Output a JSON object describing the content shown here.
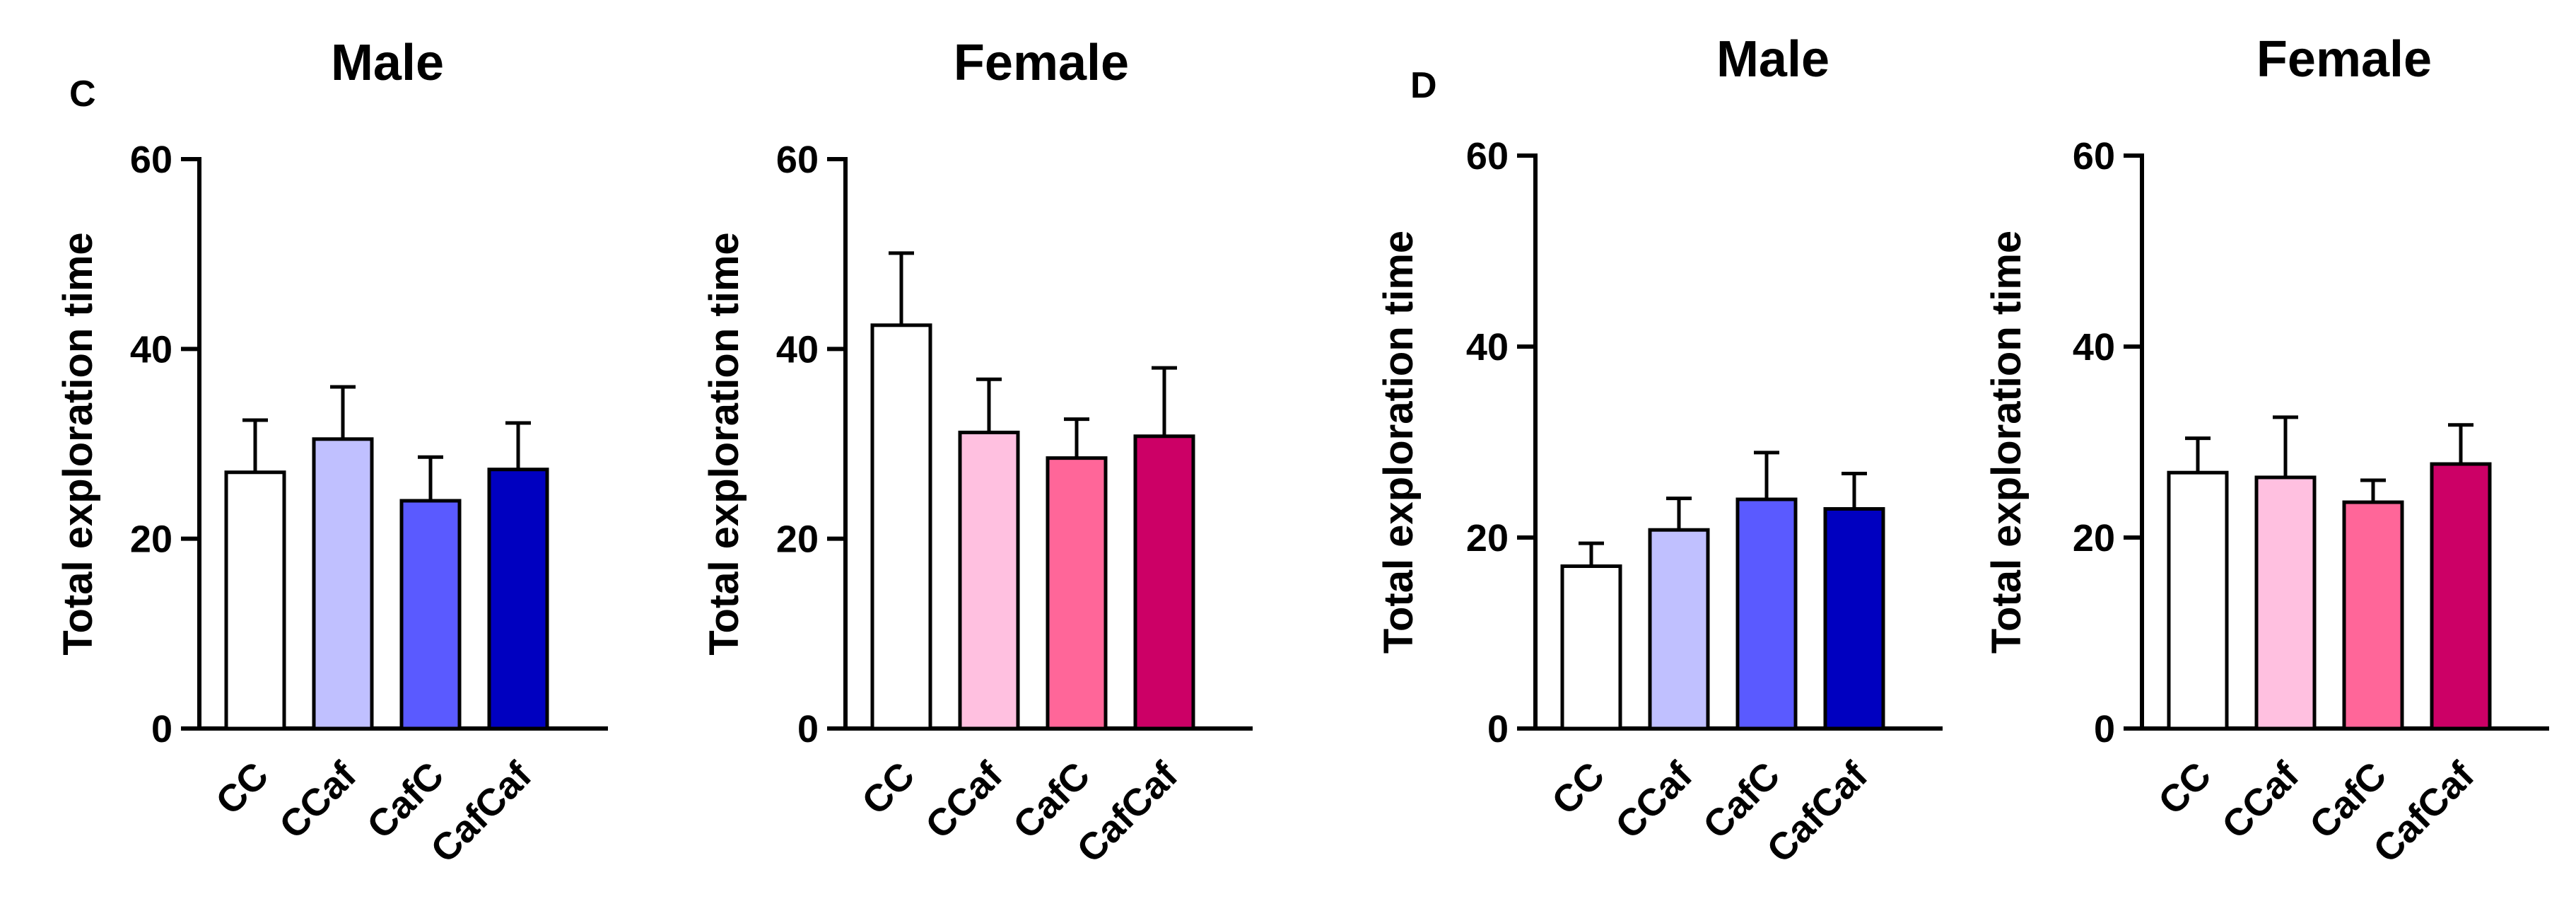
{
  "panel_labels": [
    "C",
    "D"
  ],
  "chart_data": [
    {
      "type": "bar",
      "panel": "C",
      "title": "Male",
      "ylabel": "Total exploration time",
      "xlabel": "",
      "ylim": [
        0,
        60
      ],
      "yticks": [
        0,
        20,
        40,
        60
      ],
      "categories": [
        "CC",
        "CCaf",
        "CafC",
        "CafCaf"
      ],
      "values": [
        27,
        30.5,
        24,
        27.3
      ],
      "errors": [
        5.5,
        5.5,
        4.6,
        4.9
      ],
      "colors": [
        "#ffffff",
        "#c0c0ff",
        "#5a5aff",
        "#0000c0"
      ]
    },
    {
      "type": "bar",
      "panel": "C",
      "title": "Female",
      "ylabel": "Total exploration time",
      "xlabel": "",
      "ylim": [
        0,
        60
      ],
      "yticks": [
        0,
        20,
        40,
        60
      ],
      "categories": [
        "CC",
        "CCaf",
        "CafC",
        "CafCaf"
      ],
      "values": [
        42.5,
        31.2,
        28.5,
        30.8
      ],
      "errors": [
        7.6,
        5.6,
        4.1,
        7.2
      ],
      "colors": [
        "#ffffff",
        "#ffc0e0",
        "#ff6699",
        "#cc0066"
      ]
    },
    {
      "type": "bar",
      "panel": "D",
      "title": "Male",
      "ylabel": "Total exploration time",
      "xlabel": "",
      "ylim": [
        0,
        60
      ],
      "yticks": [
        0,
        20,
        40,
        60
      ],
      "categories": [
        "CC",
        "CCaf",
        "CafC",
        "CafCaf"
      ],
      "values": [
        17,
        20.8,
        24,
        23
      ],
      "errors": [
        2.4,
        3.3,
        4.9,
        3.7
      ],
      "colors": [
        "#ffffff",
        "#c0c0ff",
        "#5a5aff",
        "#0000c0"
      ]
    },
    {
      "type": "bar",
      "panel": "D",
      "title": "Female",
      "ylabel": "Total exploration time",
      "xlabel": "",
      "ylim": [
        0,
        60
      ],
      "yticks": [
        0,
        20,
        40,
        60
      ],
      "categories": [
        "CC",
        "CCaf",
        "CafC",
        "CafCaf"
      ],
      "values": [
        26.8,
        26.3,
        23.7,
        27.7
      ],
      "errors": [
        3.6,
        6.3,
        2.3,
        4.1
      ],
      "colors": [
        "#ffffff",
        "#ffc0e0",
        "#ff6699",
        "#cc0066"
      ]
    }
  ]
}
